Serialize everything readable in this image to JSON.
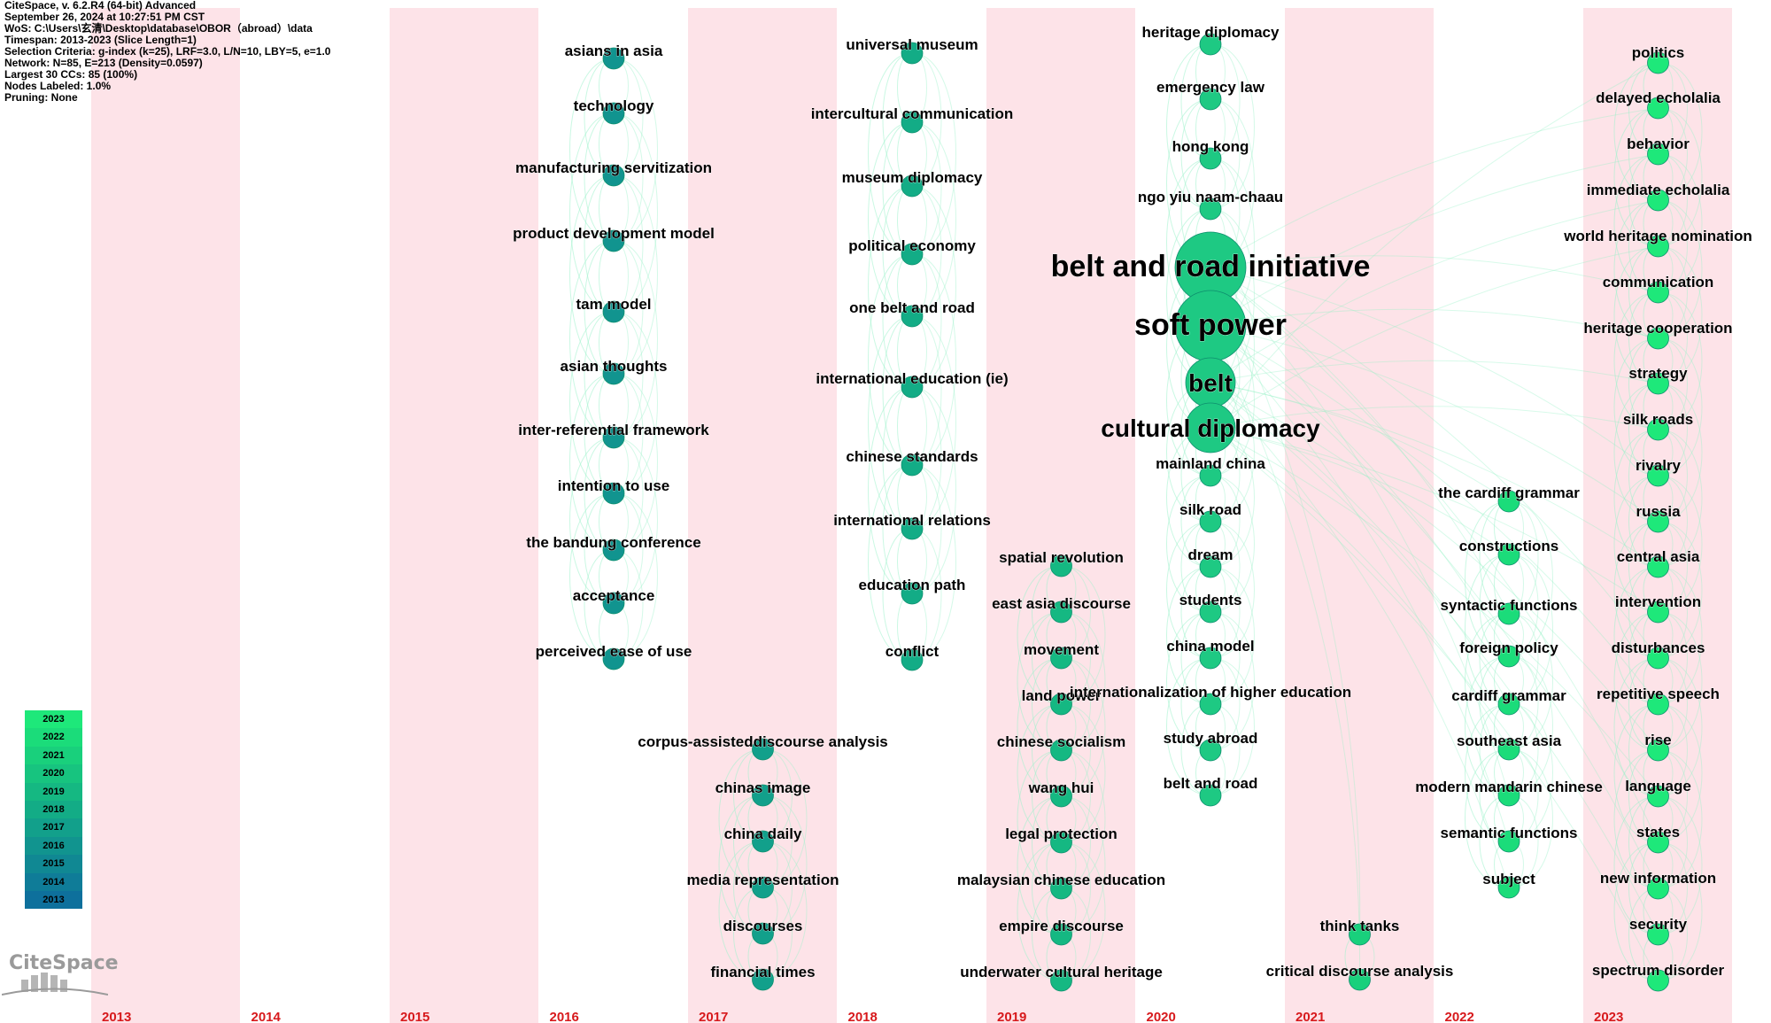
{
  "header": {
    "lines": [
      "CiteSpace, v. 6.2.R4 (64-bit) Advanced",
      "September 26, 2024 at 10:27:51 PM CST",
      "WoS: C:\\Users\\玄清\\Desktop\\database\\OBOR（abroad）\\data",
      "Timespan: 2013-2023 (Slice Length=1)",
      "Selection Criteria: g-index (k=25), LRF=3.0, L/N=10, LBY=5, e=1.0",
      "Network: N=85, E=213 (Density=0.0597)",
      "Largest 30 CCs: 85 (100%)",
      "Nodes Labeled: 1.0%",
      "Pruning: None"
    ]
  },
  "legend": {
    "years": [
      "2023",
      "2022",
      "2021",
      "2020",
      "2019",
      "2018",
      "2017",
      "2016",
      "2015",
      "2014",
      "2013"
    ],
    "colors": [
      "#1ee87a",
      "#1bdc7a",
      "#19d07c",
      "#17c47f",
      "#15b882",
      "#13ac86",
      "#12a08b",
      "#11948f",
      "#108893",
      "#0f7c98",
      "#0e709c"
    ]
  },
  "logo": {
    "text": "CiteSpace"
  },
  "timeline": {
    "years": [
      "2013",
      "2014",
      "2015",
      "2016",
      "2017",
      "2018",
      "2019",
      "2020",
      "2021",
      "2022",
      "2023"
    ],
    "band_color": "#fde3e8",
    "year_color": "#d7191c"
  },
  "columns": [
    {
      "year": "2016",
      "nodes": [
        {
          "label": "asians in asia",
          "size": 1
        },
        {
          "label": "technology",
          "size": 1
        },
        {
          "label": "manufacturing servitization",
          "size": 1
        },
        {
          "label": "product development model",
          "size": 1
        },
        {
          "label": "tam model",
          "size": 1
        },
        {
          "label": "asian thoughts",
          "size": 1
        },
        {
          "label": "inter-referential framework",
          "size": 1
        },
        {
          "label": "intention to use",
          "size": 1
        },
        {
          "label": "the bandung conference",
          "size": 1
        },
        {
          "label": "acceptance",
          "size": 1
        },
        {
          "label": "perceived ease of use",
          "size": 1
        }
      ]
    },
    {
      "year": "2017",
      "nodes": [
        {
          "label": "corpus-assisteddiscourse analysis",
          "size": 1
        },
        {
          "label": "chinas image",
          "size": 1
        },
        {
          "label": "china daily",
          "size": 1
        },
        {
          "label": "media representation",
          "size": 1
        },
        {
          "label": "discourses",
          "size": 1
        },
        {
          "label": "financial times",
          "size": 1
        }
      ]
    },
    {
      "year": "2018",
      "nodes": [
        {
          "label": "universal museum",
          "size": 1
        },
        {
          "label": "intercultural communication",
          "size": 1
        },
        {
          "label": "museum diplomacy",
          "size": 1
        },
        {
          "label": "political economy",
          "size": 1
        },
        {
          "label": "one belt and road",
          "size": 1
        },
        {
          "label": "international education (ie)",
          "size": 1
        },
        {
          "label": "chinese standards",
          "size": 1
        },
        {
          "label": "international relations",
          "size": 1
        },
        {
          "label": "education path",
          "size": 1
        },
        {
          "label": "conflict",
          "size": 1
        }
      ]
    },
    {
      "year": "2019",
      "nodes": [
        {
          "label": "spatial revolution",
          "size": 1
        },
        {
          "label": "east asia discourse",
          "size": 1
        },
        {
          "label": "movement",
          "size": 1
        },
        {
          "label": "land power",
          "size": 1
        },
        {
          "label": "chinese socialism",
          "size": 1
        },
        {
          "label": "wang hui",
          "size": 1
        },
        {
          "label": "legal protection",
          "size": 1
        },
        {
          "label": "malaysian chinese education",
          "size": 1
        },
        {
          "label": "empire discourse",
          "size": 1
        },
        {
          "label": "underwater cultural heritage",
          "size": 1
        }
      ]
    },
    {
      "year": "2020",
      "nodes": [
        {
          "label": "heritage diplomacy",
          "size": 1
        },
        {
          "label": "emergency law",
          "size": 1
        },
        {
          "label": "hong kong",
          "size": 1
        },
        {
          "label": "ngo yiu naam-chaau",
          "size": 1
        },
        {
          "label": "belt and road initiative",
          "size": 5
        },
        {
          "label": "soft power",
          "size": 5
        },
        {
          "label": "belt",
          "size": 3
        },
        {
          "label": "cultural diplomacy",
          "size": 3
        },
        {
          "label": "mainland china",
          "size": 1
        },
        {
          "label": "silk road",
          "size": 1
        },
        {
          "label": "dream",
          "size": 1
        },
        {
          "label": "students",
          "size": 1
        },
        {
          "label": "china model",
          "size": 1
        },
        {
          "label": "internationalization of higher education",
          "size": 1
        },
        {
          "label": "study abroad",
          "size": 1
        },
        {
          "label": "belt and road",
          "size": 1
        }
      ]
    },
    {
      "year": "2021",
      "nodes": [
        {
          "label": "think tanks",
          "size": 1
        },
        {
          "label": "critical discourse analysis",
          "size": 1
        }
      ]
    },
    {
      "year": "2022",
      "nodes": [
        {
          "label": "the cardiff grammar",
          "size": 1
        },
        {
          "label": "constructions",
          "size": 1
        },
        {
          "label": "syntactic functions",
          "size": 1
        },
        {
          "label": "foreign policy",
          "size": 1
        },
        {
          "label": "cardiff grammar",
          "size": 1
        },
        {
          "label": "southeast asia",
          "size": 1
        },
        {
          "label": "modern mandarin chinese",
          "size": 1
        },
        {
          "label": "semantic functions",
          "size": 1
        },
        {
          "label": "subject",
          "size": 1
        }
      ]
    },
    {
      "year": "2023",
      "nodes": [
        {
          "label": "politics",
          "size": 1
        },
        {
          "label": "delayed echolalia",
          "size": 1
        },
        {
          "label": "behavior",
          "size": 1
        },
        {
          "label": "immediate echolalia",
          "size": 1
        },
        {
          "label": "world heritage nomination",
          "size": 1
        },
        {
          "label": "communication",
          "size": 1
        },
        {
          "label": "heritage cooperation",
          "size": 1
        },
        {
          "label": "strategy",
          "size": 1
        },
        {
          "label": "silk roads",
          "size": 1
        },
        {
          "label": "rivalry",
          "size": 1
        },
        {
          "label": "russia",
          "size": 1
        },
        {
          "label": "central asia",
          "size": 1
        },
        {
          "label": "intervention",
          "size": 1
        },
        {
          "label": "disturbances",
          "size": 1
        },
        {
          "label": "repetitive speech",
          "size": 1
        },
        {
          "label": "rise",
          "size": 1
        },
        {
          "label": "language",
          "size": 1
        },
        {
          "label": "states",
          "size": 1
        },
        {
          "label": "new information",
          "size": 1
        },
        {
          "label": "security",
          "size": 1
        },
        {
          "label": "spectrum disorder",
          "size": 1
        }
      ]
    }
  ]
}
